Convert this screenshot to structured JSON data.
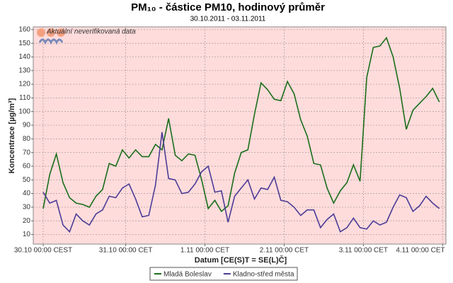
{
  "chart_data": {
    "type": "line",
    "title": "PM₁₀ - částice PM10, hodinový průměr",
    "subtitle": "30.10.2011 - 03.11.2011",
    "annotation": "Aktuální neverifikovaná data",
    "x_label": "Datum [CE(S)T = SE(L)Č]",
    "y_label": "Koncentrace [µg/m³]",
    "x": [
      0,
      2,
      4,
      6,
      8,
      10,
      12,
      14,
      16,
      18,
      20,
      22,
      24,
      26,
      28,
      30,
      32,
      34,
      36,
      38,
      40,
      42,
      44,
      46,
      48,
      50,
      52,
      54,
      56,
      58,
      60,
      62,
      64,
      66,
      68,
      70,
      72,
      74,
      76,
      78,
      80,
      82,
      84,
      86,
      88,
      90,
      92,
      94,
      96,
      98,
      100,
      102,
      104,
      106,
      108,
      110,
      112,
      114,
      116,
      118,
      120
    ],
    "series": [
      {
        "name": "Mladá Boleslav",
        "color": "#1a6e1a",
        "values": [
          29,
          54,
          69,
          48,
          37,
          33,
          32,
          30,
          38,
          43,
          62,
          60,
          72,
          66,
          72,
          67,
          67,
          76,
          72,
          95,
          68,
          64,
          69,
          68,
          50,
          29,
          35,
          27,
          31,
          55,
          70,
          72,
          98,
          121,
          116,
          109,
          108,
          122,
          113,
          94,
          82,
          62,
          61,
          44,
          33,
          42,
          48,
          61,
          49,
          125,
          147,
          148,
          154,
          140,
          117,
          87,
          101,
          106,
          111,
          117,
          107
        ]
      },
      {
        "name": "Kladno-střed města",
        "color": "#4b3c96",
        "values": [
          41,
          33,
          35,
          17,
          12,
          25,
          20,
          17,
          25,
          28,
          38,
          37,
          44,
          47,
          36,
          23,
          24,
          46,
          85,
          51,
          50,
          40,
          41,
          47,
          56,
          60,
          41,
          42,
          19,
          38,
          44,
          50,
          36,
          44,
          43,
          52,
          35,
          34,
          30,
          24,
          28,
          28,
          15,
          21,
          25,
          12,
          15,
          22,
          15,
          14,
          20,
          17,
          19,
          30,
          39,
          37,
          27,
          31,
          38,
          33,
          29
        ]
      }
    ],
    "xlim": [
      -3,
      122
    ],
    "xticks": [
      {
        "value": 0,
        "label": "30.10 00:00 CEST"
      },
      {
        "value": 25,
        "label": "31.10 00:00 CET"
      },
      {
        "value": 49,
        "label": "1.11 00:00 CET"
      },
      {
        "value": 73,
        "label": "2.11 00:00 CET"
      },
      {
        "value": 97,
        "label": "3.11 00:00 CET"
      },
      {
        "value": 121,
        "label": "4.11 00:00 CET"
      }
    ],
    "ylim": [
      3,
      162
    ],
    "yticks": [
      10,
      20,
      30,
      40,
      50,
      60,
      70,
      80,
      90,
      100,
      110,
      120,
      130,
      140,
      150,
      160
    ],
    "grid": true,
    "background": "#ffdcdc"
  }
}
